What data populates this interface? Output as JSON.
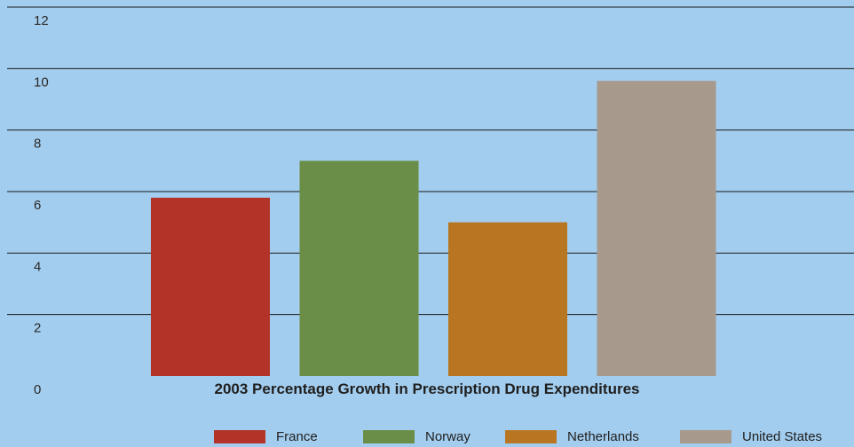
{
  "chart_data": {
    "type": "bar",
    "title": "2003 Percentage Growth in Prescription Drug Expenditures",
    "categories": [
      "France",
      "Norway",
      "Netherlands",
      "United States"
    ],
    "values": [
      5.8,
      7.0,
      5.0,
      9.6
    ],
    "colors": [
      "#b33328",
      "#6a8e48",
      "#b97622",
      "#a79a8d"
    ],
    "ylim": [
      0,
      12
    ],
    "yticks": [
      "0",
      "2",
      "4",
      "6",
      "8",
      "10",
      "12"
    ],
    "grid": true,
    "legend_position": "bottom",
    "xlabel": "",
    "ylabel": ""
  }
}
